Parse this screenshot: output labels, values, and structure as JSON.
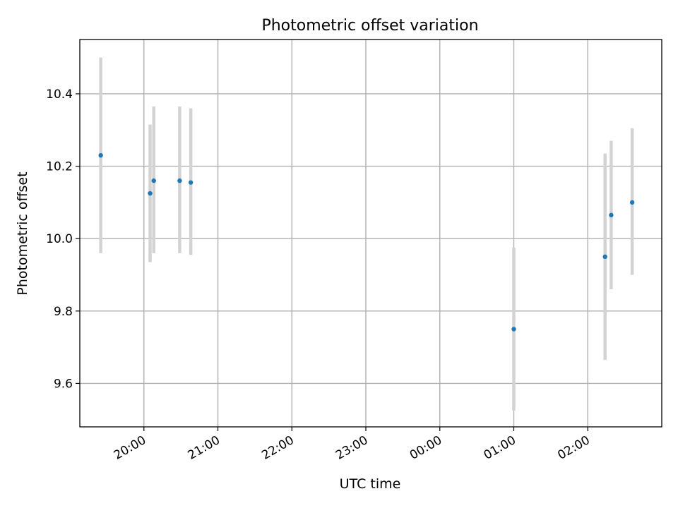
{
  "chart_data": {
    "type": "scatter",
    "title": "Photometric offset variation",
    "xlabel": "UTC time",
    "ylabel": "Photometric offset",
    "x_ticks": [
      "20:00",
      "21:00",
      "22:00",
      "23:00",
      "00:00",
      "01:00",
      "02:00"
    ],
    "y_ticks": [
      "9.6",
      "9.8",
      "10.0",
      "10.2",
      "10.4"
    ],
    "x_axis_type": "time",
    "xlim": [
      "19:08",
      "03:00"
    ],
    "ylim": [
      9.48,
      10.55
    ],
    "grid": true,
    "legend": "none",
    "errorbar_color": "#d3d3d3",
    "point_color": "#1f77b4",
    "series": [
      {
        "points": [
          {
            "x": "19:25",
            "y": 10.23,
            "yerr_low": 9.96,
            "yerr_high": 10.5
          },
          {
            "x": "20:05",
            "y": 10.125,
            "yerr_low": 9.935,
            "yerr_high": 10.315
          },
          {
            "x": "20:08",
            "y": 10.16,
            "yerr_low": 9.96,
            "yerr_high": 10.365
          },
          {
            "x": "20:29",
            "y": 10.16,
            "yerr_low": 9.96,
            "yerr_high": 10.365
          },
          {
            "x": "20:38",
            "y": 10.155,
            "yerr_low": 9.955,
            "yerr_high": 10.36
          },
          {
            "x": "01:00",
            "y": 9.75,
            "yerr_low": 9.525,
            "yerr_high": 9.975
          },
          {
            "x": "02:14",
            "y": 9.95,
            "yerr_low": 9.665,
            "yerr_high": 10.235
          },
          {
            "x": "02:19",
            "y": 10.065,
            "yerr_low": 9.86,
            "yerr_high": 10.27
          },
          {
            "x": "02:36",
            "y": 10.1,
            "yerr_low": 9.9,
            "yerr_high": 10.305
          }
        ]
      }
    ]
  }
}
